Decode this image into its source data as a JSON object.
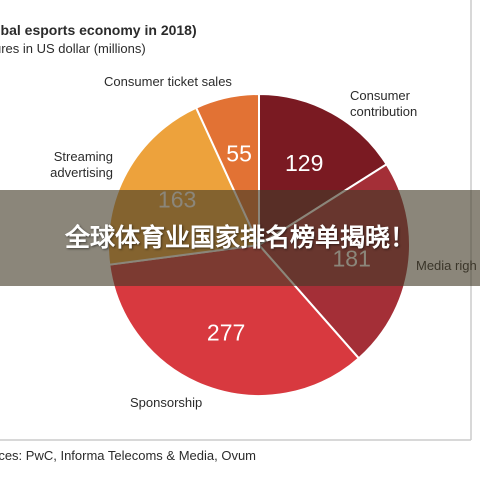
{
  "banner": {
    "title": "全球体育业国家排名榜单揭晓！"
  },
  "chart_data": {
    "type": "pie",
    "title": "obal esports economy in 2018)",
    "subtitle": "ures in US dollar (millions)",
    "source": "rces: PwC, Informa Telecoms & Media, Ovum",
    "slices": [
      {
        "label": "Consumer contribution",
        "value": 129,
        "color": "#7a1a22"
      },
      {
        "label": "Media righ",
        "value": 181,
        "color": "#a42f37"
      },
      {
        "label": "Sponsorship",
        "value": 277,
        "color": "#d8393f"
      },
      {
        "label": "Streaming advertising",
        "value": 163,
        "color": "#eda23c"
      },
      {
        "label": "Consumer ticket sales",
        "value": 55,
        "color": "#e27234"
      }
    ],
    "legend": "callout-labels"
  }
}
